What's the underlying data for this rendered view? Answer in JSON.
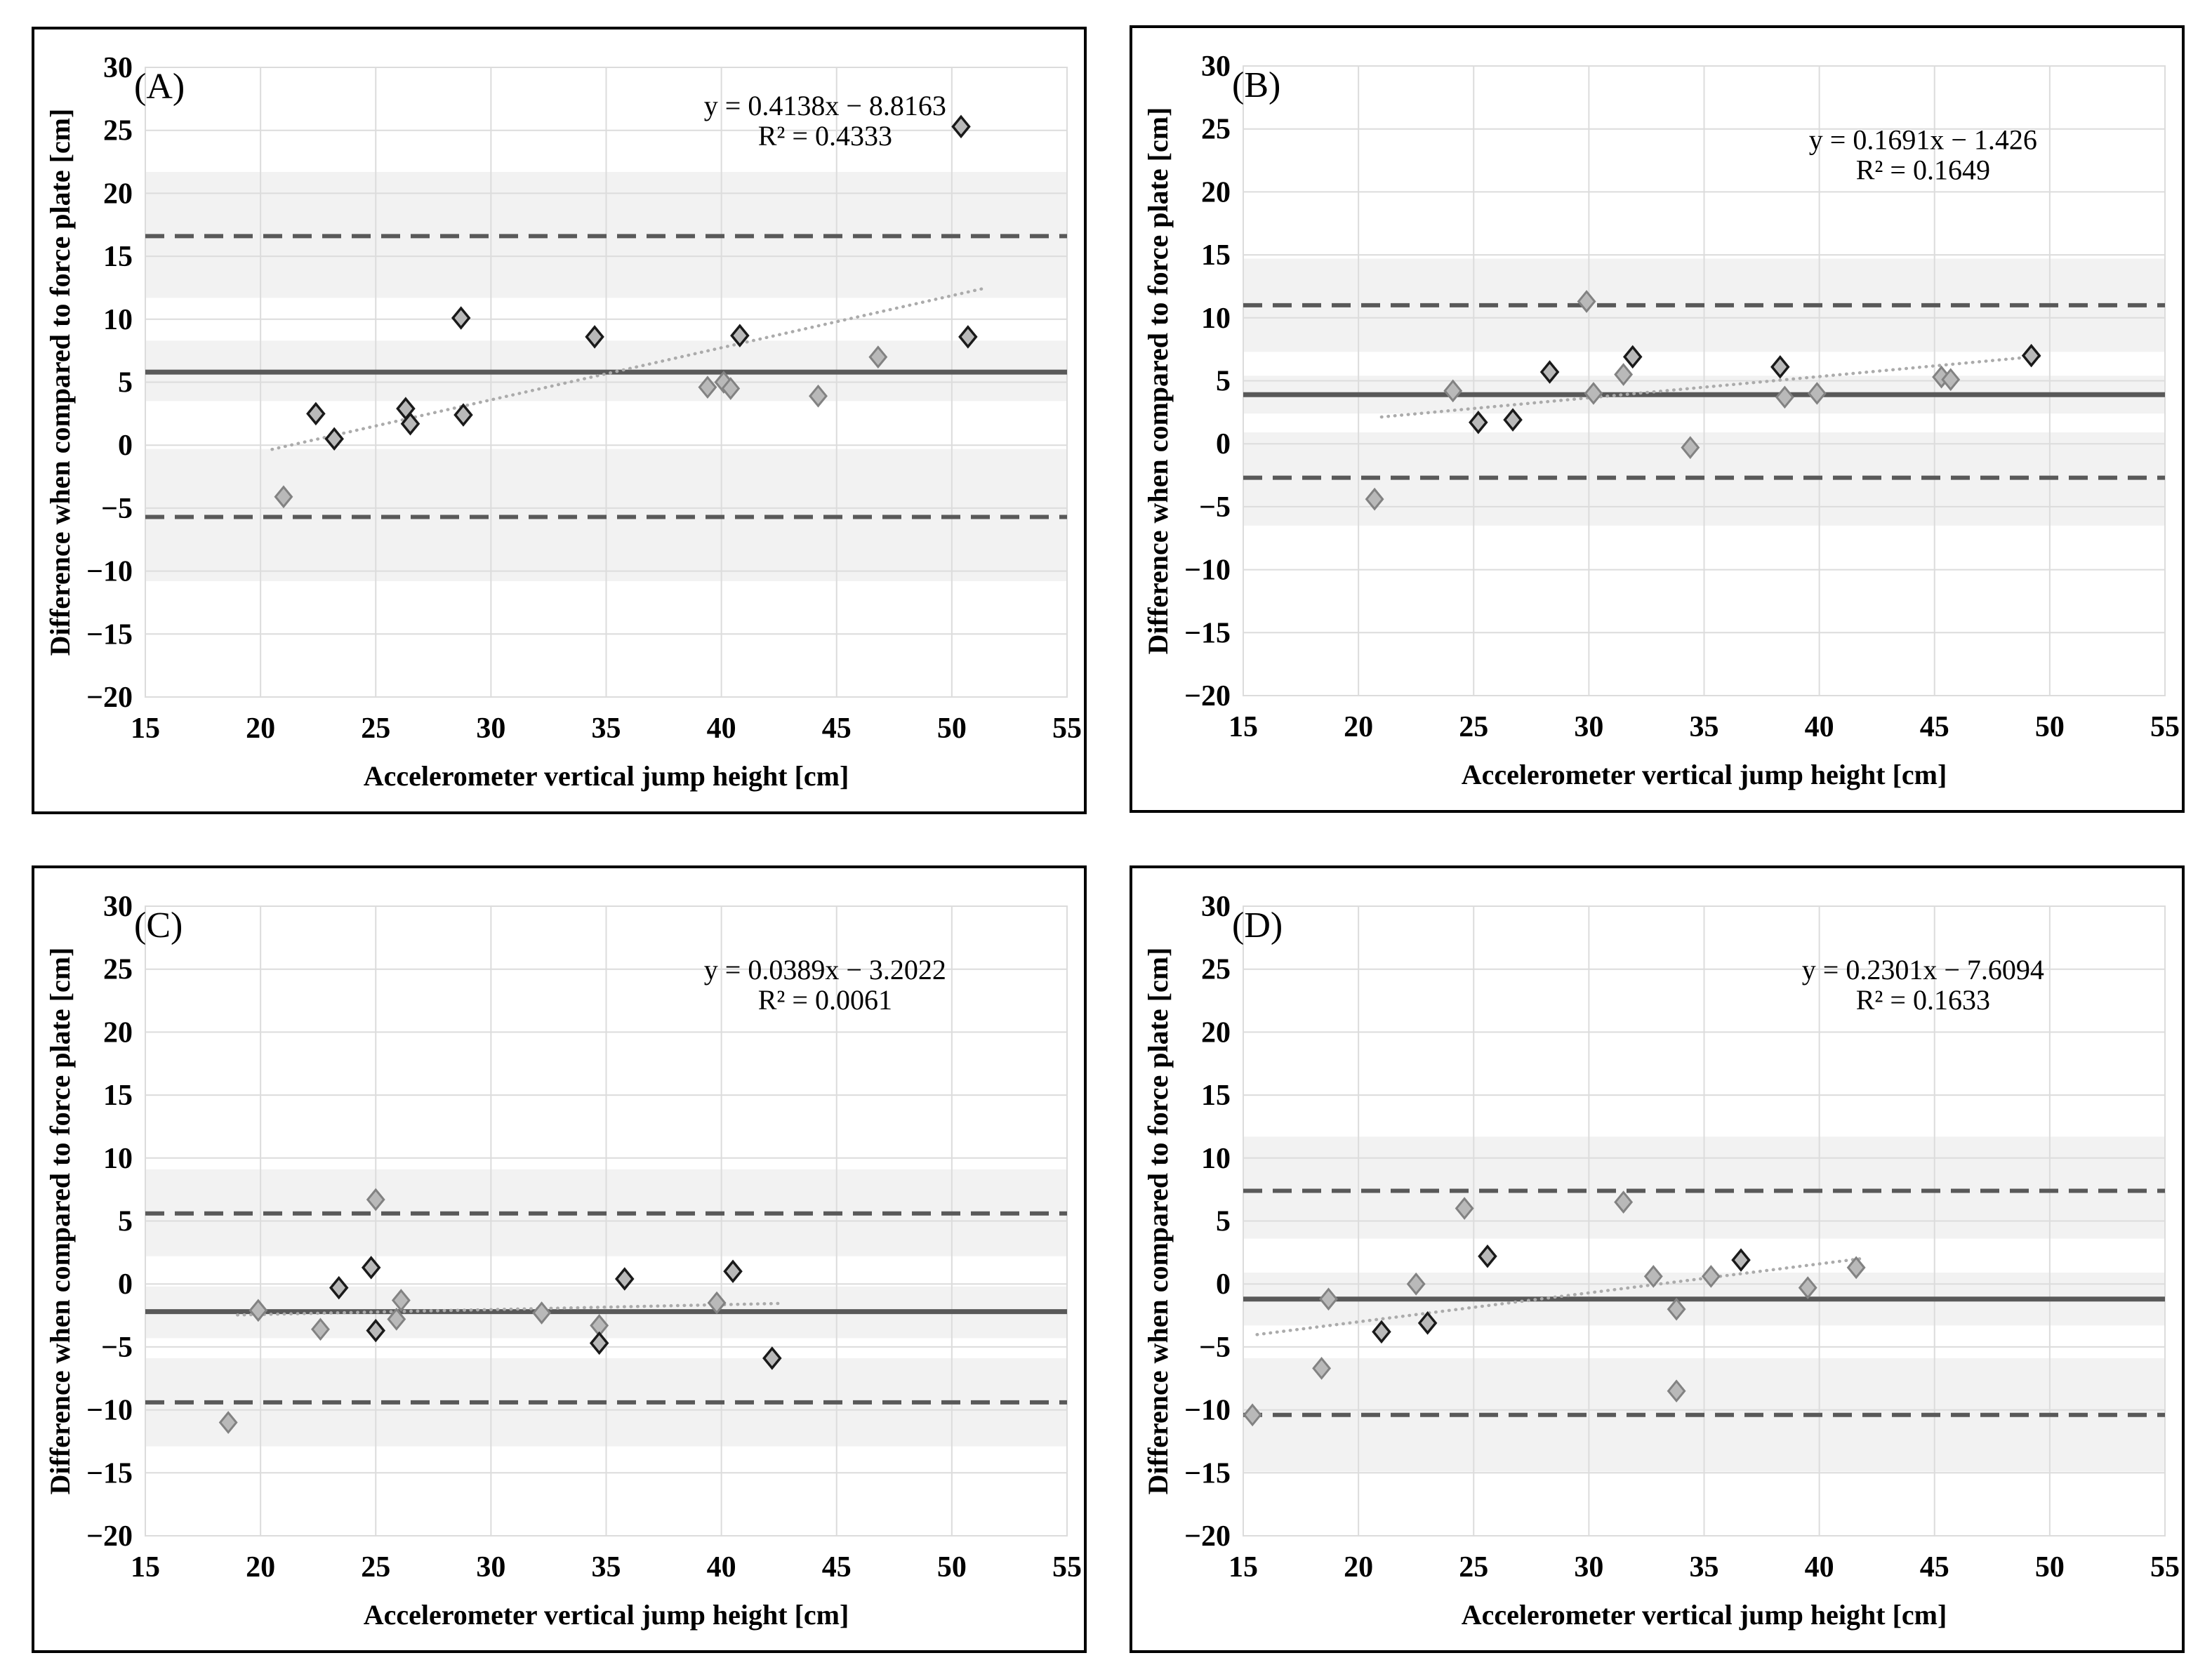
{
  "figure": {
    "description": "Bland-Altman style scatter plots comparing accelerometer vertical jump height against force plate",
    "panels": [
      "(A)",
      "(B)",
      "(C)",
      "(D)"
    ]
  },
  "styles": {
    "band_color": "#f2f2f2",
    "grid_color": "#dcdcdc",
    "mean_line_color": "#595959",
    "loa_line_color": "#595959",
    "trend_line_color": "#ababab",
    "marker_fill": "#b9b9b9",
    "marker_edge_dark": "#1a1a1a",
    "marker_edge_light": "#828282",
    "panel_border_color": "#000000"
  },
  "chart_data": [
    {
      "type": "scatter",
      "panel_letter": "(A)",
      "equation": "y = 0.4138x − 8.8163",
      "r_squared": "R² = 0.4333",
      "xlabel": "Accelerometer vertical jump height [cm]",
      "ylabel": "Difference when compared to force plate [cm]",
      "xlim": [
        15,
        55
      ],
      "ylim": [
        -20,
        30
      ],
      "xticks": [
        15,
        20,
        25,
        30,
        35,
        40,
        45,
        50,
        55
      ],
      "yticks": [
        -20,
        -15,
        -10,
        -5,
        0,
        5,
        10,
        15,
        20,
        25,
        30
      ],
      "grid": true,
      "mean_line": 5.8,
      "loa_upper": 16.6,
      "loa_lower": -5.7,
      "bands": [
        [
          11.7,
          21.7
        ],
        [
          3.5,
          8.3
        ],
        [
          -10.8,
          -0.3
        ]
      ],
      "trend": {
        "slope": 0.4138,
        "intercept": -8.8163,
        "x_start": 20.5,
        "x_end": 51.3
      },
      "points_dark": [
        [
          22.4,
          2.5
        ],
        [
          23.2,
          0.5
        ],
        [
          26.3,
          2.9
        ],
        [
          26.5,
          1.7
        ],
        [
          28.7,
          10.1
        ],
        [
          28.8,
          2.4
        ],
        [
          34.5,
          8.6
        ],
        [
          40.8,
          8.7
        ],
        [
          50.4,
          25.3
        ],
        [
          50.7,
          8.6
        ]
      ],
      "points_light": [
        [
          21.0,
          -4.1
        ],
        [
          39.4,
          4.6
        ],
        [
          40.1,
          5.0
        ],
        [
          40.4,
          4.5
        ],
        [
          44.2,
          3.9
        ],
        [
          46.8,
          7.0
        ]
      ],
      "annotation": {
        "x": 44.5,
        "y1": 26.2,
        "y2": 23.8
      },
      "legend_position": "none"
    },
    {
      "type": "scatter",
      "panel_letter": "(B)",
      "equation": "y = 0.1691x − 1.426",
      "r_squared": "R² = 0.1649",
      "xlabel": "Accelerometer vertical jump height [cm]",
      "ylabel": "Difference when compared to force plate [cm]",
      "xlim": [
        15,
        55
      ],
      "ylim": [
        -20,
        30
      ],
      "xticks": [
        15,
        20,
        25,
        30,
        35,
        40,
        45,
        50,
        55
      ],
      "yticks": [
        -20,
        -15,
        -10,
        -5,
        0,
        5,
        10,
        15,
        20,
        25,
        30
      ],
      "grid": true,
      "mean_line": 3.9,
      "loa_upper": 11.0,
      "loa_lower": -2.7,
      "bands": [
        [
          7.3,
          14.7
        ],
        [
          2.4,
          5.4
        ],
        [
          -6.5,
          0.9
        ]
      ],
      "trend": {
        "slope": 0.1691,
        "intercept": -1.426,
        "x_start": 21.0,
        "x_end": 49.6
      },
      "points_dark": [
        [
          25.2,
          1.7
        ],
        [
          26.7,
          1.9
        ],
        [
          28.3,
          5.7
        ],
        [
          31.9,
          6.9
        ],
        [
          38.3,
          6.1
        ],
        [
          49.2,
          7.0
        ]
      ],
      "points_light": [
        [
          20.7,
          -4.4
        ],
        [
          24.1,
          4.2
        ],
        [
          29.9,
          11.3
        ],
        [
          30.2,
          4.0
        ],
        [
          31.5,
          5.5
        ],
        [
          34.4,
          -0.3
        ],
        [
          38.5,
          3.7
        ],
        [
          39.9,
          4.0
        ],
        [
          45.3,
          5.3
        ],
        [
          45.7,
          5.1
        ]
      ],
      "annotation": {
        "x": 44.5,
        "y1": 23.4,
        "y2": 21.0
      },
      "legend_position": "none"
    },
    {
      "type": "scatter",
      "panel_letter": "(C)",
      "equation": "y = 0.0389x − 3.2022",
      "r_squared": "R² = 0.0061",
      "xlabel": "Accelerometer vertical jump height [cm]",
      "ylabel": "Difference when compared to force plate [cm]",
      "xlim": [
        15,
        55
      ],
      "ylim": [
        -20,
        30
      ],
      "xticks": [
        15,
        20,
        25,
        30,
        35,
        40,
        45,
        50,
        55
      ],
      "yticks": [
        -20,
        -15,
        -10,
        -5,
        0,
        5,
        10,
        15,
        20,
        25,
        30
      ],
      "grid": true,
      "mean_line": -2.2,
      "loa_upper": 5.6,
      "loa_lower": -9.4,
      "bands": [
        [
          2.2,
          9.1
        ],
        [
          -4.3,
          -0.2
        ],
        [
          -12.9,
          -5.9
        ]
      ],
      "trend": {
        "slope": 0.0389,
        "intercept": -3.2022,
        "x_start": 19.0,
        "x_end": 42.6
      },
      "points_dark": [
        [
          23.4,
          -0.3
        ],
        [
          24.8,
          1.3
        ],
        [
          25.0,
          -3.7
        ],
        [
          34.7,
          -4.7
        ],
        [
          35.8,
          0.4
        ],
        [
          40.5,
          1.0
        ],
        [
          42.2,
          -5.9
        ]
      ],
      "points_light": [
        [
          18.6,
          -11.0
        ],
        [
          19.9,
          -2.1
        ],
        [
          22.6,
          -3.6
        ],
        [
          25.0,
          6.7
        ],
        [
          25.9,
          -2.8
        ],
        [
          26.1,
          -1.3
        ],
        [
          32.2,
          -2.3
        ],
        [
          34.7,
          -3.3
        ],
        [
          39.8,
          -1.5
        ]
      ],
      "annotation": {
        "x": 44.5,
        "y1": 24.2,
        "y2": 21.8
      },
      "legend_position": "none"
    },
    {
      "type": "scatter",
      "panel_letter": "(D)",
      "equation": "y = 0.2301x − 7.6094",
      "r_squared": "R² = 0.1633",
      "xlabel": "Accelerometer vertical jump height [cm]",
      "ylabel": "Difference when compared to force plate [cm]",
      "xlim": [
        15,
        55
      ],
      "ylim": [
        -20,
        30
      ],
      "xticks": [
        15,
        20,
        25,
        30,
        35,
        40,
        45,
        50,
        55
      ],
      "yticks": [
        -20,
        -15,
        -10,
        -5,
        0,
        5,
        10,
        15,
        20,
        25,
        30
      ],
      "grid": true,
      "mean_line": -1.2,
      "loa_upper": 7.4,
      "loa_lower": -10.4,
      "bands": [
        [
          3.6,
          11.7
        ],
        [
          -3.3,
          0.9
        ],
        [
          -14.9,
          -5.9
        ]
      ],
      "trend": {
        "slope": 0.2301,
        "intercept": -7.6094,
        "x_start": 15.6,
        "x_end": 41.8
      },
      "points_dark": [
        [
          21.0,
          -3.8
        ],
        [
          23.0,
          -3.1
        ],
        [
          25.6,
          2.2
        ],
        [
          36.6,
          1.9
        ]
      ],
      "points_light": [
        [
          15.4,
          -10.4
        ],
        [
          18.4,
          -6.7
        ],
        [
          18.7,
          -1.2
        ],
        [
          22.5,
          0.0
        ],
        [
          24.6,
          6.0
        ],
        [
          31.5,
          6.5
        ],
        [
          32.8,
          0.6
        ],
        [
          33.8,
          -2.0
        ],
        [
          33.8,
          -8.5
        ],
        [
          35.3,
          0.6
        ],
        [
          39.5,
          -0.3
        ],
        [
          41.6,
          1.3
        ]
      ],
      "annotation": {
        "x": 44.5,
        "y1": 24.2,
        "y2": 21.8
      },
      "legend_position": "none"
    }
  ]
}
